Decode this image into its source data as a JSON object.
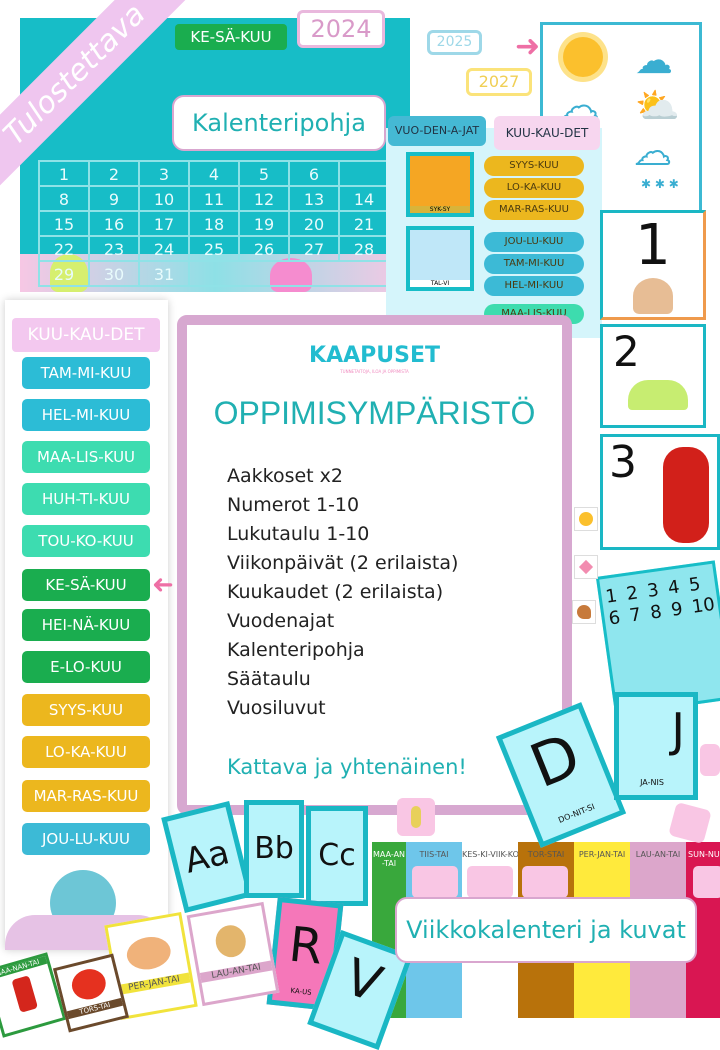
{
  "banner": {
    "ribbon": "Tulostettava"
  },
  "calendar": {
    "month": "KE-SÄ-KUU",
    "year": "2024",
    "label": "Kalenteripohja",
    "days": [
      "1",
      "2",
      "3",
      "4",
      "5",
      "6",
      "",
      "8",
      "9",
      "10",
      "11",
      "12",
      "13",
      "14",
      "15",
      "16",
      "17",
      "18",
      "19",
      "20",
      "21",
      "22",
      "23",
      "24",
      "25",
      "26",
      "27",
      "28",
      "29",
      "30",
      "31"
    ]
  },
  "years": {
    "y2025": "2025",
    "y2027": "2027"
  },
  "seasons": {
    "tab_seasons": "VUO-DEN-A-JAT",
    "tab_months": "KUU-KAU-DET",
    "autumn": "SYK-SY",
    "winter": "TAL-VI",
    "pills": [
      {
        "label": "SYYS-KUU",
        "color": "#ecb71e"
      },
      {
        "label": "LO-KA-KUU",
        "color": "#ecb71e"
      },
      {
        "label": "MAR-RAS-KUU",
        "color": "#ecb71e"
      },
      {
        "label": "JOU-LU-KUU",
        "color": "#3cbad6"
      },
      {
        "label": "TAM-MI-KUU",
        "color": "#3cbad6"
      },
      {
        "label": "HEL-MI-KUU",
        "color": "#3cbad6"
      },
      {
        "label": "MAA-LIS-KUU",
        "color": "#3ddcae"
      }
    ]
  },
  "numbers": [
    "1",
    "2",
    "3"
  ],
  "months": {
    "header": "KUU-KAU-DET",
    "items": [
      {
        "label": "TAM-MI-KUU",
        "color": "#2cbcd6"
      },
      {
        "label": "HEL-MI-KUU",
        "color": "#2cbcd6"
      },
      {
        "label": "MAA-LIS-KUU",
        "color": "#3ddcb0"
      },
      {
        "label": "HUH-TI-KUU",
        "color": "#3ddcb0"
      },
      {
        "label": "TOU-KO-KUU",
        "color": "#3ddcb0"
      },
      {
        "label": "KE-SÄ-KUU",
        "color": "#1aad4f"
      },
      {
        "label": "HEI-NÄ-KUU",
        "color": "#1aad4f"
      },
      {
        "label": "E-LO-KUU",
        "color": "#1aad4f"
      },
      {
        "label": "SYYS-KUU",
        "color": "#ecb71e"
      },
      {
        "label": "LO-KA-KUU",
        "color": "#ecb71e"
      },
      {
        "label": "MAR-RAS-KUU",
        "color": "#ecb71e"
      },
      {
        "label": "JOU-LU-KUU",
        "color": "#3cbad6"
      }
    ]
  },
  "main": {
    "logo": "KAAPUSET",
    "tagline": "TUNNETAITOJA, ILOA JA OPPIMISTA",
    "title": "OPPIMISYMPÄRISTÖ",
    "items": [
      "Aakkoset x2",
      "Numerot 1-10",
      "Lukutaulu 1-10",
      "Viikonpäivät (2 erilaista)",
      "Kuukaudet (2 erilaista)",
      "Vuodenajat",
      "Kalenteripohja",
      "Säätaulu",
      "Vuosiluvut"
    ],
    "tagline2": "Kattava ja yhtenäinen!"
  },
  "hundred": [
    "1",
    "2",
    "3",
    "4",
    "5",
    "6",
    "7",
    "8",
    "9",
    "10"
  ],
  "letters": {
    "a": "Aa",
    "b": "Bb",
    "c": "Cc",
    "r": "R",
    "v": "V",
    "d": "D",
    "j": "J",
    "d_word": "DO-NIT-SI",
    "j_word": "JA-NIS",
    "r_word": "KA-US"
  },
  "week": {
    "label": "Viikkokalenteri ja kuvat",
    "days": [
      {
        "label": "MAA-AN-TAI",
        "color": "#39a83c"
      },
      {
        "label": "TIIS-TAI",
        "color": "#6ec6ea"
      },
      {
        "label": "KES-KI-VIIK-KO",
        "color": "#ffffff"
      },
      {
        "label": "TOR-STAI",
        "color": "#b8720b"
      },
      {
        "label": "PER-JAN-TAI",
        "color": "#ffea3c"
      },
      {
        "label": "LAU-AN-TAI",
        "color": "#dca6cb"
      },
      {
        "label": "SUN-NUN-TAI",
        "color": "#d91652"
      }
    ]
  },
  "picture_cards": {
    "friday": "PER-JAN-TAI",
    "saturday": "LAU-AN-TAI",
    "monday": "MAA-NAN-TAI",
    "thursday": "TORS-TAI"
  }
}
